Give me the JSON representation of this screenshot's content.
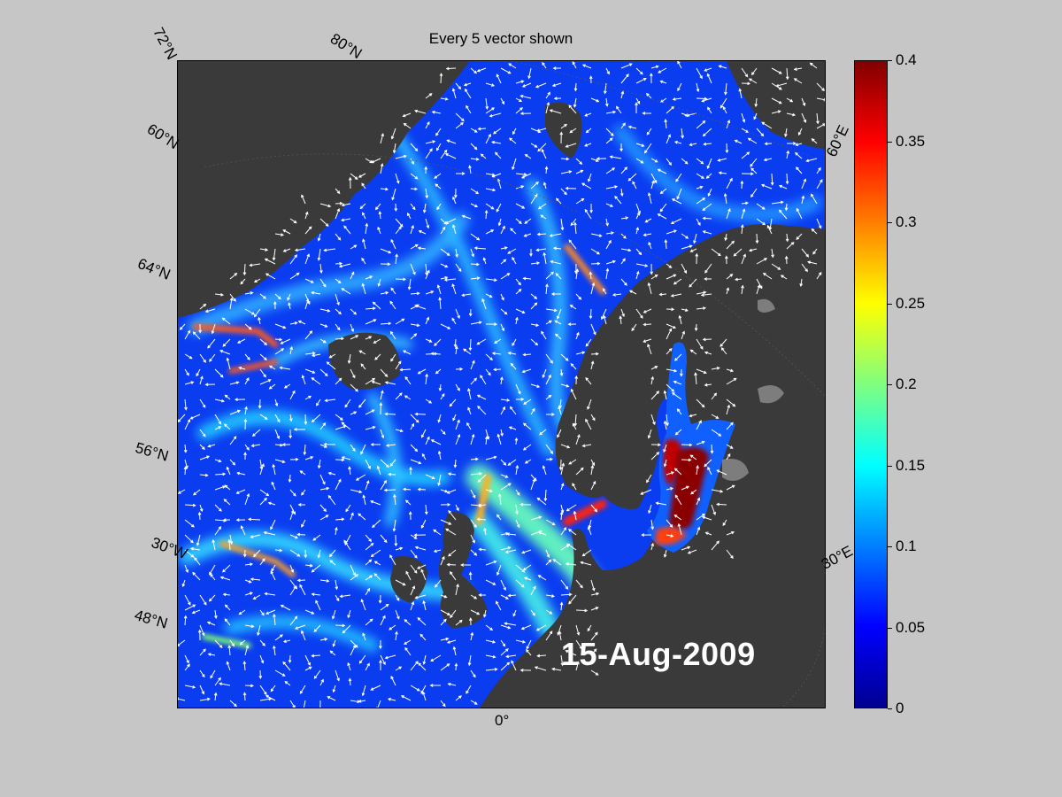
{
  "title": "Every 5 vector shown",
  "date_label": "15-Aug-2009",
  "grid_labels": {
    "lat_72": "72°N",
    "lat_80": "80°N",
    "lat_60": "60°N",
    "lat_64": "64°N",
    "lat_56": "56°N",
    "lat_30w": "30°W",
    "lat_48": "48°N",
    "lon_0": "0°",
    "lon_60e": "60°E",
    "lon_30e": "30°E"
  },
  "colorbar": {
    "min": 0,
    "max": 0.4,
    "ticks": [
      "0",
      "0.05",
      "0.1",
      "0.15",
      "0.2",
      "0.25",
      "0.3",
      "0.35",
      "0.4"
    ],
    "colormap": "jet"
  },
  "colors": {
    "ocean_low": "#0a3cf0",
    "land": "#3a3a3a",
    "ice": "#7d7d7d",
    "vectors": "#ffffff",
    "background": "#c6c6c6"
  }
}
